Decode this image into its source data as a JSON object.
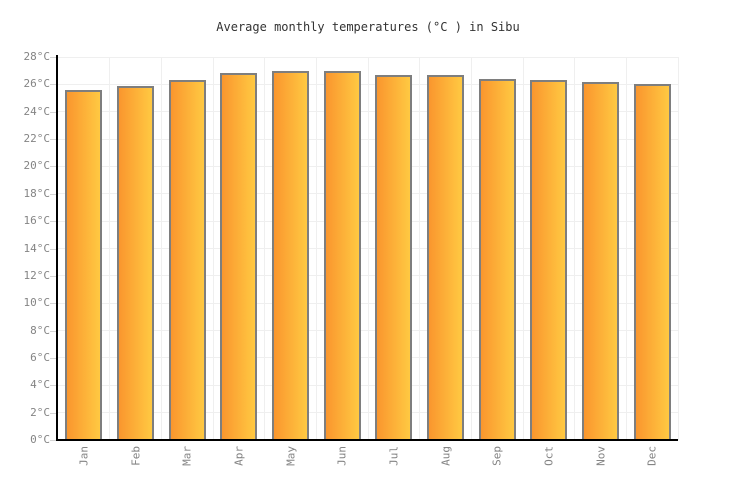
{
  "title": "Average monthly temperatures (°C ) in Sibu",
  "chart_data": {
    "type": "bar",
    "title": "Average monthly temperatures (°C ) in Sibu",
    "categories": [
      "Jan",
      "Feb",
      "Mar",
      "Apr",
      "May",
      "Jun",
      "Jul",
      "Aug",
      "Sep",
      "Oct",
      "Nov",
      "Dec"
    ],
    "values": [
      25.6,
      25.9,
      26.3,
      26.8,
      27.0,
      27.0,
      26.7,
      26.7,
      26.4,
      26.3,
      26.2,
      26.0
    ],
    "unit": "°C",
    "xlabel": "",
    "ylabel": "",
    "ylim": [
      0,
      28
    ],
    "ytick_step": 2,
    "ytick_suffix": "°C",
    "grid": true,
    "legend": false,
    "colors": {
      "bar_gradient_left": "#fa962e",
      "bar_gradient_right": "#ffc942",
      "bar_border": "#7e7e7e",
      "grid": "#efefef",
      "tick": "#d4d4d4",
      "axis": "#000000",
      "tick_label": "#848484",
      "title": "#333333",
      "background": "#ffffff"
    }
  }
}
